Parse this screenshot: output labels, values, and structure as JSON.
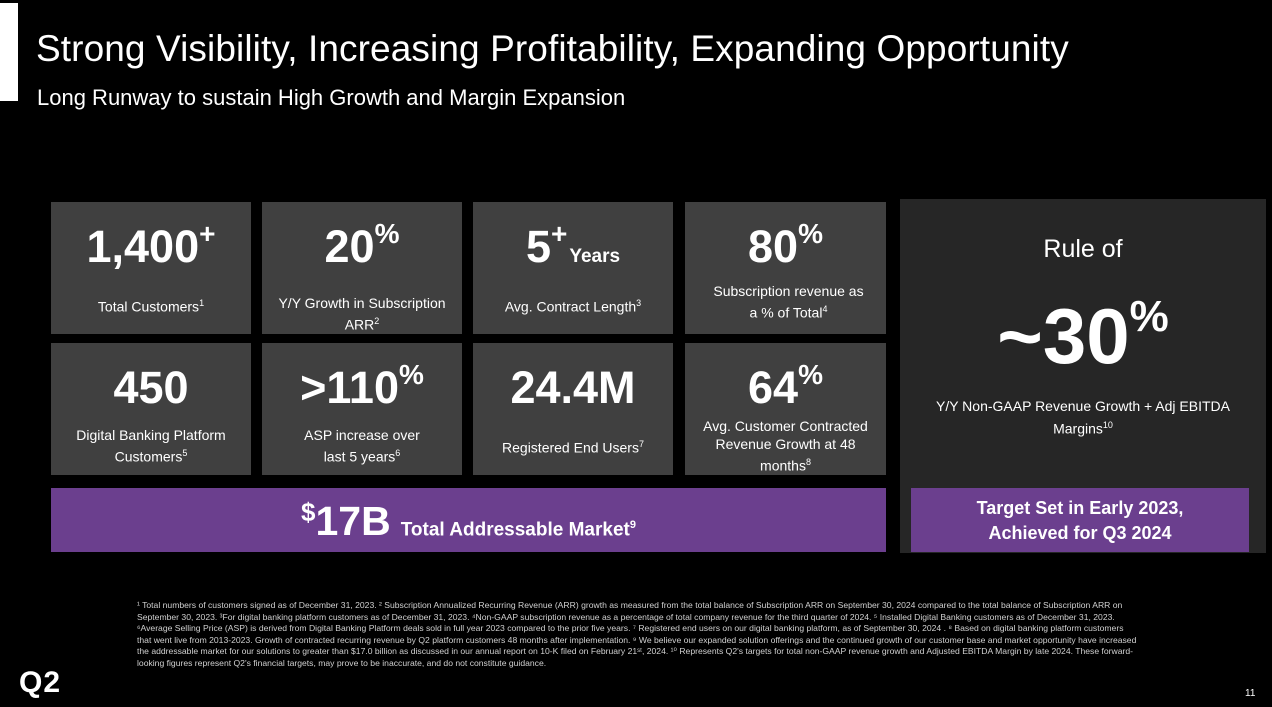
{
  "header": {
    "title": "Strong Visibility, Increasing Profitability, Expanding Opportunity",
    "subtitle": "Long Runway to sustain High Growth and Margin Expansion"
  },
  "tiles": [
    {
      "value": "1,400",
      "sup": "+",
      "suffix": "",
      "label": "Total Customers",
      "note": "1"
    },
    {
      "value": "20",
      "sup": "%",
      "suffix": "",
      "label": "Y/Y Growth in Subscription ARR",
      "note": "2"
    },
    {
      "value": "5",
      "sup": "+",
      "suffix": "Years",
      "label": "Avg. Contract Length",
      "note": "3"
    },
    {
      "value": "80",
      "sup": "%",
      "suffix": "",
      "label": "Subscription revenue as a % of Total",
      "note": "4"
    },
    {
      "value": "450",
      "sup": "",
      "suffix": "",
      "label": "Digital Banking Platform Customers",
      "note": "5"
    },
    {
      "value": ">110",
      "sup": "%",
      "suffix": "",
      "label": "ASP increase over last 5 years",
      "note": "6"
    },
    {
      "value": "24.4M",
      "sup": "",
      "suffix": "",
      "label": "Registered End Users",
      "note": "7"
    },
    {
      "value": "64",
      "sup": "%",
      "suffix": "",
      "label": "Avg. Customer Contracted Revenue Growth at 48 months",
      "note": "8"
    }
  ],
  "tam": {
    "currency": "$",
    "amount": "17B",
    "label": "Total Addressable Market",
    "note": "9"
  },
  "rule": {
    "heading": "Rule of",
    "value": "~30",
    "sup": "%",
    "label": "Y/Y Non-GAAP Revenue Growth + Adj EBITDA Margins",
    "note": "10",
    "target_line1": "Target Set in Early 2023,",
    "target_line2": "Achieved for Q3 2024"
  },
  "footnotes": "¹ Total numbers of customers signed as of December 31, 2023. ² Subscription Annualized Recurring Revenue (ARR) growth as measured from the total balance of Subscription ARR on September 30, 2024 compared to the total balance of Subscription ARR on September 30, 2023. ³For digital banking platform customers as of December 31, 2023. ⁴Non-GAAP subscription revenue as a percentage of total company revenue for the third quarter of 2024. ⁵ Installed Digital Banking customers as of December 31, 2023. ⁶Average Selling Price (ASP) is derived from Digital Banking Platform deals sold in full year 2023 compared to the prior five years. ⁷ Registered end users on our digital banking platform, as of September 30, 2024 . ⁸ Based on digital banking platform customers that went live from 2013-2023. Growth of contracted recurring revenue by Q2 platform customers 48 months after implementation. ⁹ We believe our expanded solution offerings and the continued growth of our customer base and market opportunity have increased the addressable market for our solutions to greater than $17.0 billion as discussed in our annual report on 10-K filed on February 21ˢᵗ, 2024. ¹⁰ Represents Q2's targets for total non-GAAP revenue growth and Adjusted EBITDA Margin by late 2024. These forward-looking figures represent Q2's financial targets, may prove to be inaccurate, and do not constitute guidance.",
  "footer": {
    "logo": "Q2",
    "page_number": "11"
  }
}
